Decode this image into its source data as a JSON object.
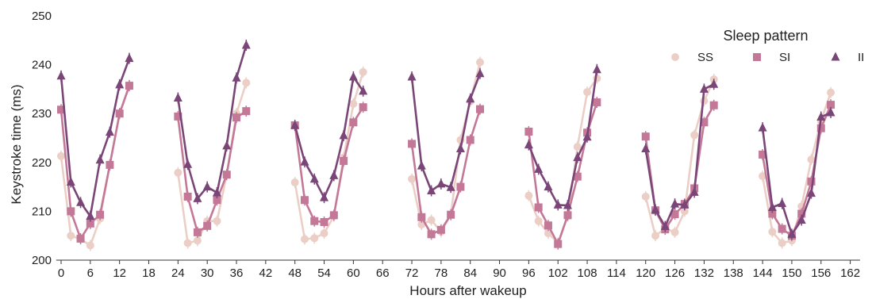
{
  "chart_data": {
    "type": "line",
    "xlabel": "Hours after wakeup",
    "ylabel": "Keystroke time (ms)",
    "xticks": [
      0,
      6,
      12,
      18,
      24,
      30,
      36,
      42,
      48,
      54,
      60,
      66,
      72,
      78,
      84,
      90,
      96,
      102,
      108,
      114,
      120,
      126,
      132,
      138,
      144,
      150,
      156,
      162
    ],
    "yticks": [
      200,
      210,
      220,
      230,
      240,
      250
    ],
    "xlim": [
      -1,
      164
    ],
    "ylim": [
      200,
      250
    ],
    "grid": false,
    "legend": {
      "title": "Sleep pattern",
      "position": "top-right"
    },
    "series": [
      {
        "name": "SS",
        "marker": "circle",
        "color": "#ebcfc6",
        "segments": [
          [
            [
              0,
              221.3
            ],
            [
              2,
              205
            ],
            [
              4,
              204.3
            ],
            [
              6,
              203
            ],
            [
              8,
              208.5
            ],
            [
              10,
              219.5
            ],
            [
              12,
              230
            ],
            [
              14,
              235.8
            ]
          ],
          [
            [
              24,
              217.9
            ],
            [
              26,
              203.5
            ],
            [
              28,
              204
            ],
            [
              30,
              208
            ],
            [
              32,
              208
            ],
            [
              34,
              217.5
            ],
            [
              36,
              230
            ],
            [
              38,
              236.3
            ]
          ],
          [
            [
              48,
              215.9
            ],
            [
              50,
              204.3
            ],
            [
              52,
              204.5
            ],
            [
              54,
              205.5
            ],
            [
              56,
              209
            ],
            [
              58,
              221
            ],
            [
              60,
              232
            ],
            [
              62,
              238.5
            ]
          ],
          [
            [
              72,
              216.6
            ],
            [
              74,
              207.3
            ],
            [
              76,
              208.2
            ],
            [
              78,
              205.8
            ],
            [
              80,
              209.3
            ],
            [
              82,
              224.6
            ],
            [
              84,
              232.5
            ],
            [
              86,
              240.5
            ]
          ],
          [
            [
              96,
              213.2
            ],
            [
              98,
              208
            ],
            [
              100,
              205.5
            ],
            [
              102,
              203.5
            ],
            [
              104,
              209
            ],
            [
              106,
              223.2
            ],
            [
              108,
              234.4
            ],
            [
              110,
              237.2
            ]
          ],
          [
            [
              120,
              213
            ],
            [
              122,
              205
            ],
            [
              124,
              206.5
            ],
            [
              126,
              205.7
            ],
            [
              128,
              210
            ],
            [
              130,
              225.6
            ],
            [
              132,
              232.6
            ],
            [
              134,
              237
            ]
          ],
          [
            [
              144,
              217.2
            ],
            [
              146,
              205.8
            ],
            [
              148,
              203.5
            ],
            [
              150,
              204
            ],
            [
              152,
              211
            ],
            [
              154,
              220.6
            ],
            [
              156,
              228.5
            ],
            [
              158,
              234.3
            ]
          ]
        ]
      },
      {
        "name": "SI",
        "marker": "square",
        "color": "#c47897",
        "segments": [
          [
            [
              0,
              230.8
            ],
            [
              2,
              210
            ],
            [
              4,
              204.4
            ],
            [
              6,
              207.5
            ],
            [
              8,
              209.3
            ],
            [
              10,
              219.5
            ],
            [
              12,
              230
            ],
            [
              14,
              235.7
            ]
          ],
          [
            [
              24,
              229.4
            ],
            [
              26,
              213
            ],
            [
              28,
              205.7
            ],
            [
              30,
              207
            ],
            [
              32,
              212.3
            ],
            [
              34,
              217.5
            ],
            [
              36,
              229.2
            ],
            [
              38,
              230.5
            ]
          ],
          [
            [
              48,
              227.6
            ],
            [
              50,
              212.3
            ],
            [
              52,
              208
            ],
            [
              54,
              207.8
            ],
            [
              56,
              209.2
            ],
            [
              58,
              220.3
            ],
            [
              60,
              228.2
            ],
            [
              62,
              231.3
            ]
          ],
          [
            [
              72,
              223.8
            ],
            [
              74,
              208.8
            ],
            [
              76,
              205.3
            ],
            [
              78,
              206.2
            ],
            [
              80,
              209.3
            ],
            [
              82,
              215
            ],
            [
              84,
              224.6
            ],
            [
              86,
              230.9
            ]
          ],
          [
            [
              96,
              226.3
            ],
            [
              98,
              210.8
            ],
            [
              100,
              207.1
            ],
            [
              102,
              203.3
            ],
            [
              104,
              209.2
            ],
            [
              106,
              217.1
            ],
            [
              108,
              226.1
            ],
            [
              110,
              232.3
            ]
          ],
          [
            [
              120,
              225.3
            ],
            [
              122,
              210.2
            ],
            [
              124,
              206.3
            ],
            [
              126,
              209.4
            ],
            [
              128,
              211.5
            ],
            [
              130,
              214.7
            ],
            [
              132,
              228.2
            ],
            [
              134,
              231.7
            ]
          ],
          [
            [
              144,
              221.6
            ],
            [
              146,
              209.5
            ],
            [
              148,
              206.4
            ],
            [
              150,
              205
            ],
            [
              152,
              209.5
            ],
            [
              154,
              216.1
            ],
            [
              156,
              227
            ],
            [
              158,
              231.8
            ]
          ]
        ]
      },
      {
        "name": "II",
        "marker": "triangle",
        "color": "#7a4577",
        "segments": [
          [
            [
              0,
              237.7
            ],
            [
              2,
              216
            ],
            [
              4,
              211.8
            ],
            [
              6,
              209
            ],
            [
              8,
              220.5
            ],
            [
              10,
              226.2
            ],
            [
              12,
              235.9
            ],
            [
              14,
              241.3
            ]
          ],
          [
            [
              24,
              233.2
            ],
            [
              26,
              219.6
            ],
            [
              28,
              212.6
            ],
            [
              30,
              215
            ],
            [
              32,
              213.8
            ],
            [
              34,
              223.4
            ],
            [
              36,
              237.3
            ],
            [
              38,
              244
            ]
          ],
          [
            [
              48,
              227.6
            ],
            [
              50,
              220.1
            ],
            [
              52,
              216.6
            ],
            [
              54,
              212.8
            ],
            [
              56,
              217.3
            ],
            [
              58,
              225.5
            ],
            [
              60,
              237.5
            ],
            [
              62,
              234.6
            ]
          ],
          [
            [
              72,
              237.5
            ],
            [
              74,
              219.3
            ],
            [
              76,
              214.2
            ],
            [
              78,
              215.6
            ],
            [
              80,
              214.9
            ],
            [
              82,
              222.8
            ],
            [
              84,
              233
            ],
            [
              86,
              238.2
            ]
          ],
          [
            [
              96,
              223.6
            ],
            [
              98,
              218.6
            ],
            [
              100,
              215
            ],
            [
              102,
              211.3
            ],
            [
              104,
              211.2
            ],
            [
              106,
              221
            ],
            [
              108,
              225.2
            ],
            [
              110,
              239
            ]
          ],
          [
            [
              120,
              222.8
            ],
            [
              122,
              210.3
            ],
            [
              124,
              206.9
            ],
            [
              126,
              211.5
            ],
            [
              128,
              211.3
            ],
            [
              130,
              213.9
            ],
            [
              132,
              235
            ],
            [
              134,
              236
            ]
          ],
          [
            [
              144,
              227.1
            ],
            [
              146,
              210.8
            ],
            [
              148,
              211.6
            ],
            [
              150,
              205.3
            ],
            [
              152,
              208.2
            ],
            [
              154,
              213.7
            ],
            [
              156,
              229.3
            ],
            [
              158,
              230.2
            ]
          ]
        ]
      }
    ]
  }
}
